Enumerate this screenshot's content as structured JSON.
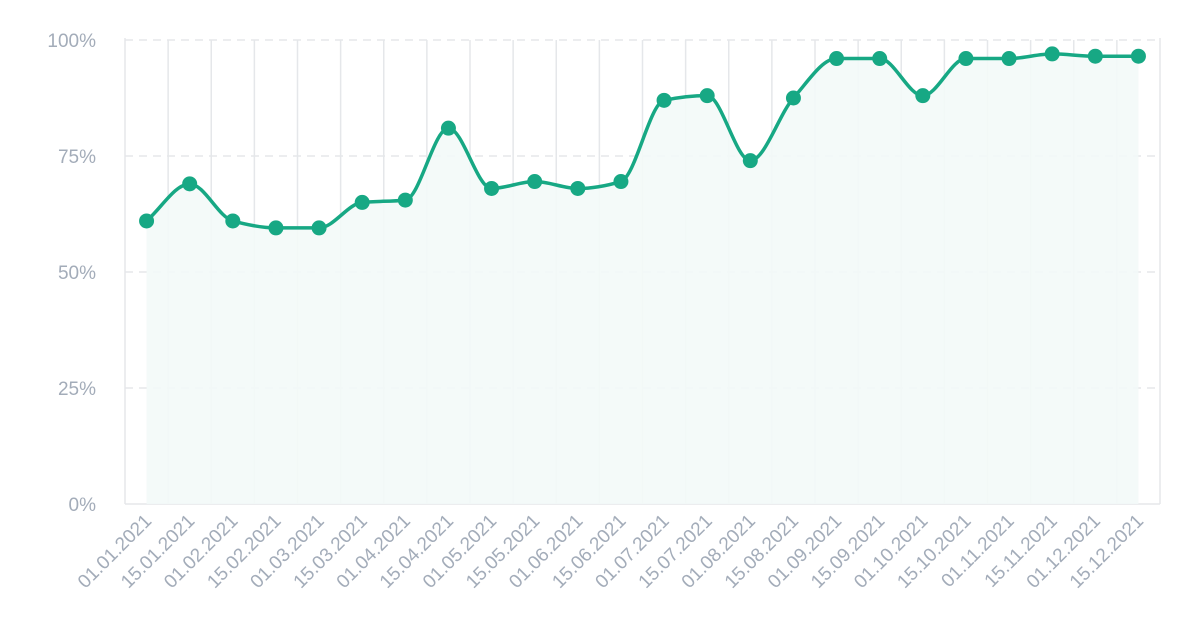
{
  "chart_data": {
    "type": "area",
    "title": "",
    "xlabel": "",
    "ylabel": "",
    "ylim": [
      0,
      100
    ],
    "yticks": [
      "0%",
      "25%",
      "50%",
      "75%",
      "100%"
    ],
    "ytick_values": [
      0,
      25,
      50,
      75,
      100
    ],
    "grid": "horizontal dashed, vertical solid",
    "legend": "none",
    "colors": {
      "line": "#17a884",
      "fill": "#f3f9f8",
      "grid": "#e5e7ea",
      "label": "#a3acb9"
    },
    "categories": [
      "01.01.2021",
      "15.01.2021",
      "01.02.2021",
      "15.02.2021",
      "01.03.2021",
      "15.03.2021",
      "01.04.2021",
      "15.04.2021",
      "01.05.2021",
      "15.05.2021",
      "01.06.2021",
      "15.06.2021",
      "01.07.2021",
      "15.07.2021",
      "01.08.2021",
      "15.08.2021",
      "01.09.2021",
      "15.09.2021",
      "01.10.2021",
      "15.10.2021",
      "01.11.2021",
      "15.11.2021",
      "01.12.2021",
      "15.12.2021"
    ],
    "series": [
      {
        "values": [
          61,
          69,
          61,
          59.5,
          59.5,
          65,
          65.5,
          81,
          68,
          69.5,
          68,
          69.5,
          87,
          88,
          74,
          87.5,
          96,
          96,
          88,
          96,
          96,
          97,
          96.5,
          96.5
        ]
      }
    ]
  }
}
